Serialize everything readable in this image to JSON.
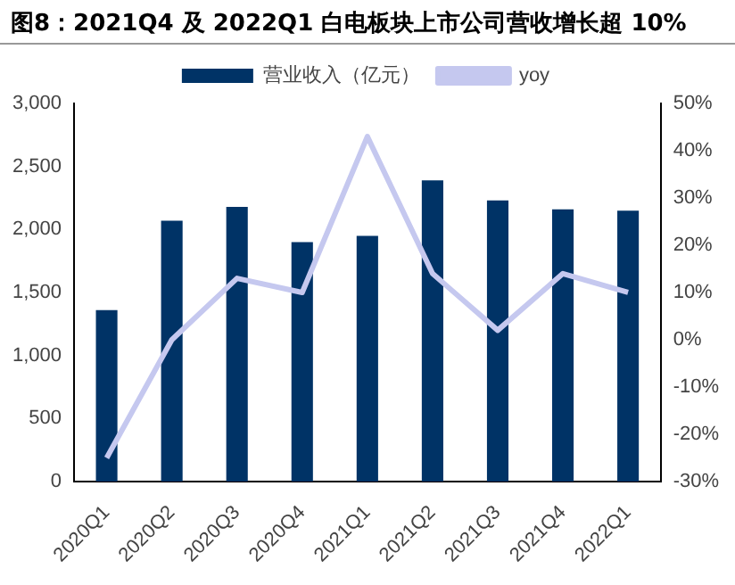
{
  "chart_data": {
    "type": "bar",
    "title": "图8：2021Q4 及 2022Q1 白电板块上市公司营收增长超 10%",
    "categories": [
      "2020Q1",
      "2020Q2",
      "2020Q3",
      "2020Q4",
      "2021Q1",
      "2021Q2",
      "2021Q3",
      "2021Q4",
      "2022Q1"
    ],
    "series": [
      {
        "name": "营业收入（亿元）",
        "color": "#003366",
        "values": [
          1360,
          2070,
          2180,
          1900,
          1950,
          2390,
          2230,
          2160,
          2150
        ]
      },
      {
        "name": "yoy",
        "type": "line",
        "axis": "y2",
        "color": "#c5c8ef",
        "values": [
          -25,
          0,
          13,
          10,
          43,
          14,
          2,
          14,
          10
        ]
      }
    ],
    "ylim": [
      0,
      3000
    ],
    "yticks": [
      0,
      500,
      {
        "value": 1000,
        "label": "1,000"
      },
      {
        "value": 1500,
        "label": "1,500"
      },
      {
        "value": 2000,
        "label": "2,000"
      },
      {
        "value": 2500,
        "label": "2,500"
      },
      {
        "value": 3000,
        "label": "3,000"
      }
    ],
    "y2lim": [
      -30,
      50
    ],
    "y2ticks": [
      {
        "value": -30,
        "label": "-30%"
      },
      {
        "value": -20,
        "label": "-20%"
      },
      {
        "value": -10,
        "label": "-10%"
      },
      {
        "value": 0,
        "label": "0%"
      },
      {
        "value": 10,
        "label": "10%"
      },
      {
        "value": 20,
        "label": "20%"
      },
      {
        "value": 30,
        "label": "30%"
      },
      {
        "value": 40,
        "label": "40%"
      },
      {
        "value": 50,
        "label": "50%"
      }
    ],
    "grid": false,
    "legend": "top",
    "marker": "none"
  }
}
